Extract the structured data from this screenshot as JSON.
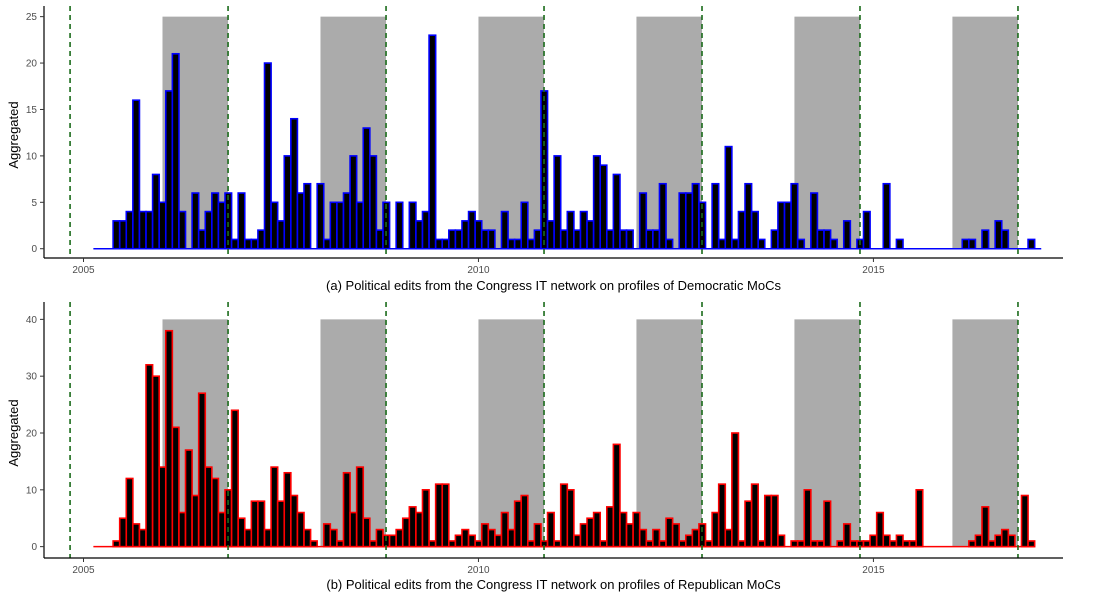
{
  "colors": {
    "background": "#ffffff",
    "shade": "#ababab",
    "bar_fill": "#000000",
    "dem_outline": "#0000ff",
    "rep_outline": "#ff0000",
    "election_line": "#1a6b1a"
  },
  "chart_data": [
    {
      "type": "bar",
      "caption": "(a) Political edits from the Congress IT network on profiles of Democratic MoCs",
      "ylabel": "Aggregated",
      "xlabel": "",
      "x_ticks": [
        2005,
        2010,
        2015
      ],
      "y_ticks": [
        0,
        5,
        10,
        15,
        20,
        25
      ],
      "xlim": [
        2004.5,
        2017.4
      ],
      "ylim": [
        -1,
        25.5
      ],
      "outline_color": "#0000ff",
      "start": 2005.125,
      "bin_width": 0.08333,
      "values": [
        0,
        0,
        0,
        3,
        3,
        4,
        16,
        4,
        4,
        8,
        5,
        17,
        21,
        4,
        0,
        6,
        2,
        4,
        6,
        5,
        6,
        1,
        6,
        1,
        1,
        2,
        20,
        5,
        3,
        10,
        14,
        6,
        7,
        0,
        7,
        1,
        5,
        5,
        6,
        10,
        5,
        13,
        10,
        2,
        5,
        0,
        5,
        0,
        5,
        3,
        4,
        23,
        1,
        1,
        2,
        2,
        3,
        4,
        3,
        2,
        2,
        0,
        4,
        1,
        1,
        5,
        1,
        2,
        17,
        3,
        10,
        2,
        4,
        2,
        4,
        3,
        10,
        9,
        2,
        8,
        2,
        2,
        0,
        6,
        2,
        2,
        7,
        1,
        0,
        6,
        6,
        7,
        5,
        0,
        7,
        1,
        11,
        1,
        4,
        7,
        4,
        1,
        0,
        2,
        5,
        5,
        7,
        1,
        0,
        6,
        2,
        2,
        1,
        0,
        3,
        0,
        1,
        4,
        0,
        0,
        7,
        0,
        1,
        0,
        0,
        0,
        0,
        0,
        0,
        0,
        0,
        0,
        1,
        1,
        0,
        2,
        0,
        3,
        2,
        0,
        0,
        0,
        1,
        0
      ],
      "shaded_periods": [
        [
          2006.0,
          2006.83
        ],
        [
          2008.0,
          2008.83
        ],
        [
          2010.0,
          2010.83
        ],
        [
          2012.0,
          2012.83
        ],
        [
          2014.0,
          2014.83
        ],
        [
          2016.0,
          2016.83
        ]
      ],
      "election_lines": [
        2004.83,
        2006.83,
        2008.83,
        2010.83,
        2012.83,
        2014.83,
        2016.83
      ],
      "grid": false
    },
    {
      "type": "bar",
      "caption": "(b) Political edits from the Congress IT network on profiles of Republican MoCs",
      "ylabel": "Aggregated",
      "xlabel": "",
      "x_ticks": [
        2005,
        2010,
        2015
      ],
      "y_ticks": [
        0,
        10,
        20,
        30,
        40
      ],
      "xlim": [
        2004.5,
        2017.4
      ],
      "ylim": [
        -2,
        42
      ],
      "outline_color": "#ff0000",
      "start": 2005.125,
      "bin_width": 0.08333,
      "values": [
        0,
        0,
        0,
        1,
        5,
        12,
        4,
        3,
        32,
        30,
        14,
        38,
        21,
        6,
        17,
        9,
        27,
        14,
        12,
        6,
        10,
        24,
        5,
        3,
        8,
        8,
        3,
        14,
        8,
        13,
        9,
        6,
        3,
        1,
        0,
        4,
        3,
        1,
        13,
        6,
        14,
        5,
        1,
        3,
        2,
        2,
        3,
        5,
        7,
        6,
        10,
        1,
        11,
        11,
        1,
        2,
        3,
        2,
        1,
        4,
        3,
        2,
        6,
        3,
        8,
        9,
        1,
        4,
        1,
        6,
        1,
        11,
        10,
        2,
        4,
        5,
        6,
        1,
        7,
        18,
        6,
        4,
        6,
        3,
        1,
        3,
        1,
        5,
        4,
        1,
        2,
        3,
        4,
        1,
        6,
        11,
        3,
        20,
        1,
        8,
        11,
        1,
        9,
        9,
        2,
        0,
        1,
        1,
        10,
        1,
        1,
        8,
        0,
        1,
        4,
        1,
        1,
        1,
        2,
        6,
        2,
        1,
        2,
        1,
        1,
        10,
        0,
        0,
        0,
        0,
        0,
        0,
        0,
        1,
        2,
        7,
        1,
        2,
        3,
        2,
        0,
        9,
        1
      ],
      "shaded_periods": [
        [
          2006.0,
          2006.83
        ],
        [
          2008.0,
          2008.83
        ],
        [
          2010.0,
          2010.83
        ],
        [
          2012.0,
          2012.83
        ],
        [
          2014.0,
          2014.83
        ],
        [
          2016.0,
          2016.83
        ]
      ],
      "election_lines": [
        2004.83,
        2006.83,
        2008.83,
        2010.83,
        2012.83,
        2014.83,
        2016.83
      ],
      "grid": false
    }
  ]
}
